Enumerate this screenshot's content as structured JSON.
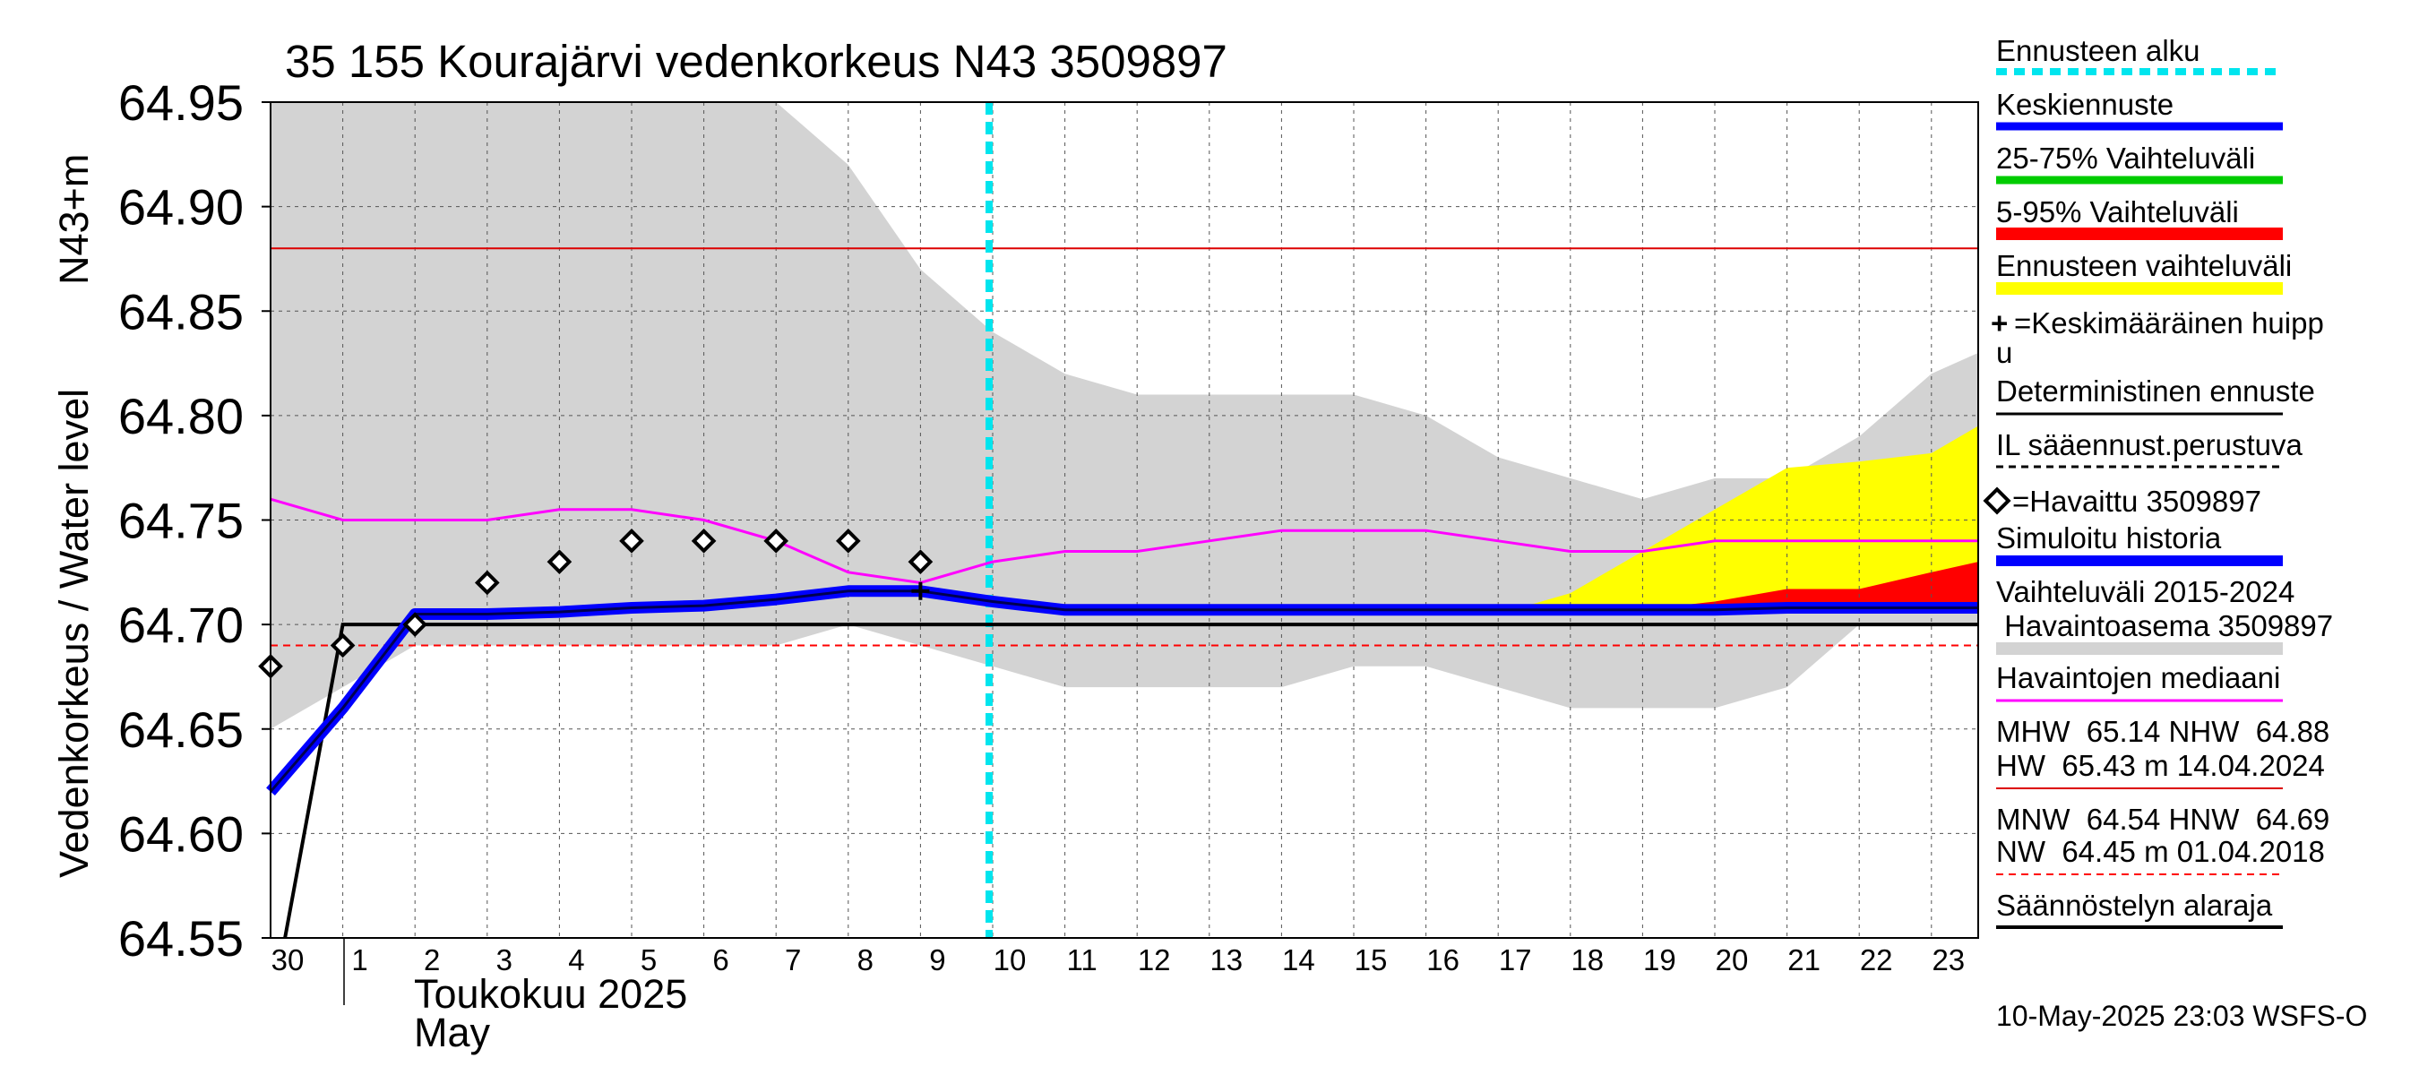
{
  "title": "35 155 Kourajärvi vedenkorkeus N43 3509897",
  "y_axis": {
    "label": "Vedenkorkeus / Water level",
    "unit": "N43+m",
    "min": 64.55,
    "max": 64.95,
    "ticks": [
      "64.95",
      "64.90",
      "64.85",
      "64.80",
      "64.75",
      "64.70",
      "64.65",
      "64.60",
      "64.55"
    ]
  },
  "x_axis": {
    "day_labels": [
      "30",
      "1",
      "2",
      "3",
      "4",
      "5",
      "6",
      "7",
      "8",
      "9",
      "10",
      "11",
      "12",
      "13",
      "14",
      "15",
      "16",
      "17",
      "18",
      "19",
      "20",
      "21",
      "22",
      "23"
    ],
    "month_label_fi": "Toukokuu  2025",
    "month_label_en": "May"
  },
  "legend": {
    "forecast_start": "Ennusteen alku",
    "mean_forecast": "Keskiennuste",
    "range_25_75": "25-75% Vaihteluväli",
    "range_5_95": "5-95% Vaihteluväli",
    "forecast_range": "Ennusteen vaihteluväli",
    "mean_peak_line1": "=Keskimääräinen huipp",
    "mean_peak_line2": "u",
    "deterministic": "Deterministinen ennuste",
    "il_forecast": "IL sääennust.perustuva",
    "observed": "=Havaittu 3509897",
    "simulated": "Simuloitu historia",
    "range_hist_line1": "Vaihteluväli 2015-2024",
    "range_hist_line2": " Havaintoasema 3509897",
    "obs_median": "Havaintojen mediaani",
    "mhw_line": "MHW  65.14 NHW  64.88",
    "hw_line": "HW  65.43 m 14.04.2024",
    "mnw_line": "MNW  64.54 HNW  64.69",
    "nw_line": "NW  64.45 m 01.04.2018",
    "reg_min": "Säännöstelyn alaraja"
  },
  "footer": "10-May-2025 23:03 WSFS-O",
  "colors": {
    "forecast_start": "#00e5ee",
    "mean_forecast": "#0000ff",
    "range_25_75": "#00cc00",
    "range_5_95": "#ff0000",
    "forecast_range": "#ffff00",
    "hist_range": "#d3d3d3",
    "median": "#ff00ff",
    "nhw": "#dd0000",
    "hnw": "#ff0000"
  },
  "chart_data": {
    "type": "line",
    "title": "35 155 Kourajärvi vedenkorkeus N43 3509897",
    "ylabel": "Vedenkorkeus / Water level  N43+m",
    "ylim": [
      64.55,
      64.95
    ],
    "x_unit": "day (2025-04-30 = 0, 2025-05-01 = 1)",
    "xlim": [
      0,
      23.9
    ],
    "forecast_start_day": 10,
    "reference_lines": {
      "NHW": 64.88,
      "HNW": 64.69
    },
    "series": [
      {
        "name": "Havaittu 3509897",
        "x": [
          0,
          1,
          2,
          3,
          4,
          5,
          6,
          7,
          8,
          9
        ],
        "y": [
          64.68,
          64.69,
          64.7,
          64.72,
          64.73,
          64.74,
          64.74,
          64.74,
          64.74,
          64.73
        ]
      },
      {
        "name": "Havaintojen mediaani",
        "x": [
          0,
          1,
          2,
          3,
          4,
          5,
          6,
          7,
          8,
          9,
          10,
          11,
          12,
          13,
          14,
          15,
          16,
          17,
          18,
          19,
          20,
          21,
          22,
          23,
          23.9
        ],
        "y": [
          64.76,
          64.75,
          64.75,
          64.75,
          64.755,
          64.755,
          64.75,
          64.74,
          64.725,
          64.72,
          64.73,
          64.735,
          64.735,
          64.74,
          64.745,
          64.745,
          64.745,
          64.74,
          64.735,
          64.735,
          64.74,
          64.74,
          64.74,
          64.74,
          64.74
        ]
      },
      {
        "name": "Keskiennuste",
        "x": [
          0,
          1,
          2,
          3,
          4,
          5,
          6,
          7,
          8,
          9,
          10,
          11,
          12,
          13,
          14,
          15,
          16,
          17,
          18,
          19,
          20,
          21,
          22,
          23,
          23.9
        ],
        "y": [
          64.62,
          64.66,
          64.705,
          64.705,
          64.706,
          64.708,
          64.709,
          64.712,
          64.716,
          64.716,
          64.711,
          64.707,
          64.707,
          64.707,
          64.707,
          64.707,
          64.707,
          64.707,
          64.707,
          64.707,
          64.707,
          64.708,
          64.708,
          64.708,
          64.708
        ]
      },
      {
        "name": "Simuloitu historia",
        "x": [
          0,
          1,
          2,
          3,
          4,
          5,
          6,
          7,
          8,
          9
        ],
        "y": [
          64.62,
          64.66,
          64.705,
          64.705,
          64.706,
          64.708,
          64.709,
          64.712,
          64.716,
          64.716
        ]
      },
      {
        "name": "Säännöstelyn alaraja",
        "x": [
          0.2,
          1,
          23.9
        ],
        "y": [
          64.55,
          64.7,
          64.7
        ]
      },
      {
        "name": "Vaihteluväli 2015-2024 upper",
        "x": [
          0,
          7,
          8,
          9,
          10,
          11,
          12,
          13,
          14,
          15,
          16,
          17,
          18,
          19,
          20,
          21,
          22,
          23,
          23.9
        ],
        "y": [
          64.95,
          64.95,
          64.92,
          64.87,
          64.84,
          64.82,
          64.81,
          64.81,
          64.81,
          64.81,
          64.8,
          64.78,
          64.77,
          64.76,
          64.77,
          64.77,
          64.79,
          64.82,
          64.83
        ]
      },
      {
        "name": "Vaihteluväli 2015-2024 lower",
        "x": [
          0,
          1,
          2,
          3,
          4,
          5,
          6,
          7,
          8,
          9,
          10,
          11,
          12,
          13,
          14,
          15,
          16,
          17,
          18,
          19,
          20,
          21,
          22,
          23,
          23.9
        ],
        "y": [
          64.65,
          64.67,
          64.69,
          64.69,
          64.69,
          64.69,
          64.69,
          64.69,
          64.7,
          64.69,
          64.68,
          64.67,
          64.67,
          64.67,
          64.67,
          64.68,
          64.68,
          64.67,
          64.66,
          64.66,
          64.66,
          64.67,
          64.7,
          64.7,
          64.7
        ]
      },
      {
        "name": "Ennusteen vaihteluväli upper",
        "x": [
          17,
          17.5,
          18,
          19,
          20,
          21,
          22,
          23,
          23.9
        ],
        "y": [
          64.707,
          64.71,
          64.715,
          64.735,
          64.755,
          64.775,
          64.778,
          64.782,
          64.795
        ]
      },
      {
        "name": "5-95% Vaihteluväli upper",
        "x": [
          18,
          19,
          20,
          21,
          22,
          23,
          23.9
        ],
        "y": [
          64.707,
          64.707,
          64.711,
          64.717,
          64.717,
          64.725,
          64.73
        ]
      }
    ]
  }
}
